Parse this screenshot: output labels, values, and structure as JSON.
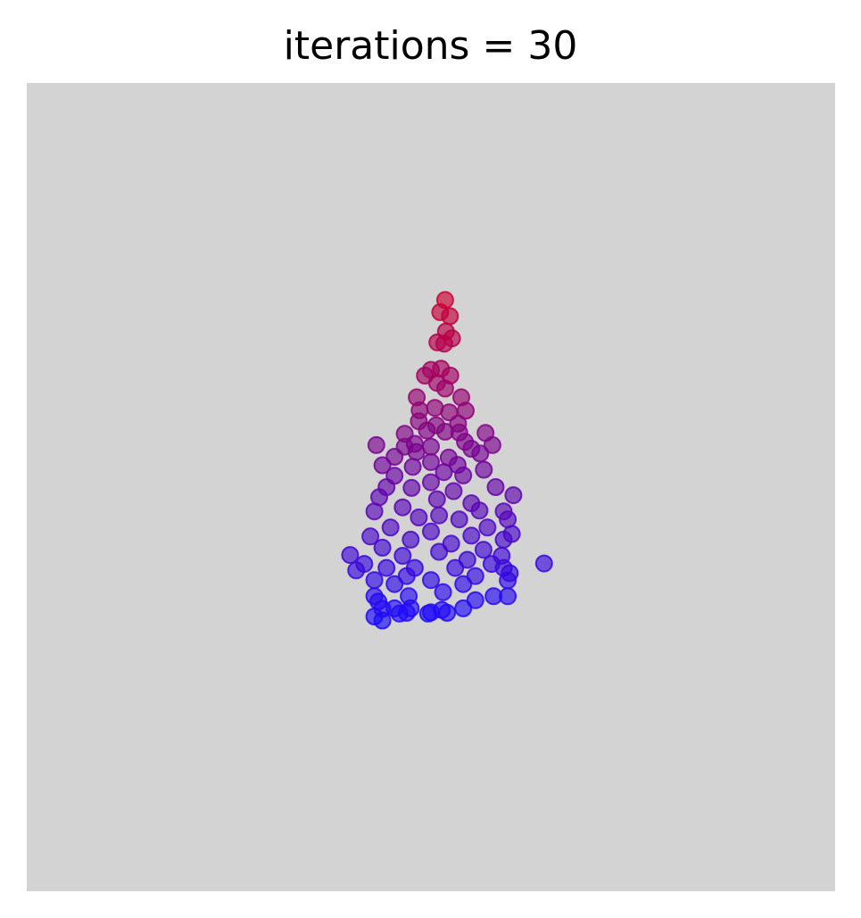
{
  "chart_data": {
    "type": "scatter",
    "title": "iterations = 30",
    "xlabel": "",
    "ylabel": "",
    "axes_visible": false,
    "grid": false,
    "legend": "none",
    "xlim": [
      -1,
      1
    ],
    "ylim": [
      -1,
      1
    ],
    "background_color": "#d3d3d3",
    "color_top": "#cc0033",
    "color_bottom": "#1a0aff",
    "marker_opacity": 0.65,
    "series": [
      {
        "points": [
          [
            0.035,
            0.463
          ],
          [
            0.023,
            0.433
          ],
          [
            0.047,
            0.423
          ],
          [
            0.037,
            0.385
          ],
          [
            0.052,
            0.368
          ],
          [
            0.016,
            0.358
          ],
          [
            0.033,
            0.355
          ],
          [
            0.0,
            0.29
          ],
          [
            0.025,
            0.293
          ],
          [
            0.048,
            0.276
          ],
          [
            0.015,
            0.258
          ],
          [
            -0.015,
            0.276
          ],
          [
            0.035,
            0.244
          ],
          [
            -0.035,
            0.222
          ],
          [
            0.075,
            0.222
          ],
          [
            -0.028,
            0.19
          ],
          [
            0.086,
            0.189
          ],
          [
            0.01,
            0.196
          ],
          [
            0.045,
            0.185
          ],
          [
            0.067,
            0.157
          ],
          [
            -0.03,
            0.163
          ],
          [
            0.07,
            0.135
          ],
          [
            0.013,
            0.153
          ],
          [
            -0.065,
            0.132
          ],
          [
            -0.01,
            0.14
          ],
          [
            0.035,
            0.137
          ],
          [
            0.135,
            0.134
          ],
          [
            -0.04,
            0.107
          ],
          [
            0.084,
            0.112
          ],
          [
            -0.135,
            0.104
          ],
          [
            -0.065,
            0.1
          ],
          [
            0.152,
            0.104
          ],
          [
            0.0,
            0.1
          ],
          [
            0.044,
            0.073
          ],
          [
            0.1,
            0.095
          ],
          [
            -0.09,
            0.075
          ],
          [
            -0.036,
            0.087
          ],
          [
            0.122,
            0.083
          ],
          [
            0.066,
            0.055
          ],
          [
            -0.0,
            0.062
          ],
          [
            -0.12,
            0.054
          ],
          [
            -0.045,
            0.05
          ],
          [
            0.032,
            0.037
          ],
          [
            0.08,
            0.029
          ],
          [
            0.131,
            0.043
          ],
          [
            -0.09,
            0.028
          ],
          [
            0.0,
            0.012
          ],
          [
            -0.11,
            0.0
          ],
          [
            0.056,
            -0.01
          ],
          [
            0.16,
            0.0
          ],
          [
            -0.048,
            -0.002
          ],
          [
            0.204,
            -0.02
          ],
          [
            -0.128,
            -0.025
          ],
          [
            0.015,
            -0.03
          ],
          [
            0.1,
            -0.04
          ],
          [
            -0.07,
            -0.05
          ],
          [
            0.12,
            -0.058
          ],
          [
            -0.14,
            -0.06
          ],
          [
            0.18,
            -0.06
          ],
          [
            0.02,
            -0.07
          ],
          [
            -0.03,
            -0.075
          ],
          [
            0.07,
            -0.08
          ],
          [
            -0.1,
            -0.1
          ],
          [
            0.14,
            -0.1
          ],
          [
            0.19,
            -0.08
          ],
          [
            0.2,
            -0.116
          ],
          [
            -0.15,
            -0.122
          ],
          [
            0.0,
            -0.11
          ],
          [
            0.1,
            -0.12
          ],
          [
            0.18,
            -0.13
          ],
          [
            -0.05,
            -0.13
          ],
          [
            0.05,
            -0.14
          ],
          [
            -0.12,
            -0.15
          ],
          [
            0.13,
            -0.155
          ],
          [
            -0.2,
            -0.168
          ],
          [
            0.175,
            -0.17
          ],
          [
            0.28,
            -0.189
          ],
          [
            -0.07,
            -0.17
          ],
          [
            0.02,
            -0.16
          ],
          [
            0.09,
            -0.18
          ],
          [
            -0.165,
            -0.19
          ],
          [
            -0.11,
            -0.2
          ],
          [
            0.15,
            -0.19
          ],
          [
            -0.04,
            -0.2
          ],
          [
            0.06,
            -0.2
          ],
          [
            0.18,
            -0.2
          ],
          [
            -0.185,
            -0.206
          ],
          [
            0.195,
            -0.213
          ],
          [
            -0.06,
            -0.22
          ],
          [
            0.11,
            -0.22
          ],
          [
            -0.14,
            -0.23
          ],
          [
            0.0,
            -0.23
          ],
          [
            0.19,
            -0.231
          ],
          [
            -0.09,
            -0.24
          ],
          [
            0.08,
            -0.24
          ],
          [
            -0.14,
            -0.27
          ],
          [
            0.03,
            -0.26
          ],
          [
            0.155,
            -0.27
          ],
          [
            -0.055,
            -0.27
          ],
          [
            0.19,
            -0.27
          ],
          [
            -0.13,
            -0.283
          ],
          [
            0.11,
            -0.28
          ],
          [
            -0.12,
            -0.301
          ],
          [
            -0.05,
            -0.3
          ],
          [
            0.0,
            -0.31
          ],
          [
            0.08,
            -0.3
          ],
          [
            -0.09,
            -0.3
          ],
          [
            -0.078,
            -0.313
          ],
          [
            -0.06,
            -0.311
          ],
          [
            -0.007,
            -0.313
          ],
          [
            0.027,
            -0.304
          ],
          [
            0.04,
            -0.311
          ],
          [
            -0.14,
            -0.32
          ],
          [
            -0.12,
            -0.33
          ]
        ]
      }
    ]
  }
}
